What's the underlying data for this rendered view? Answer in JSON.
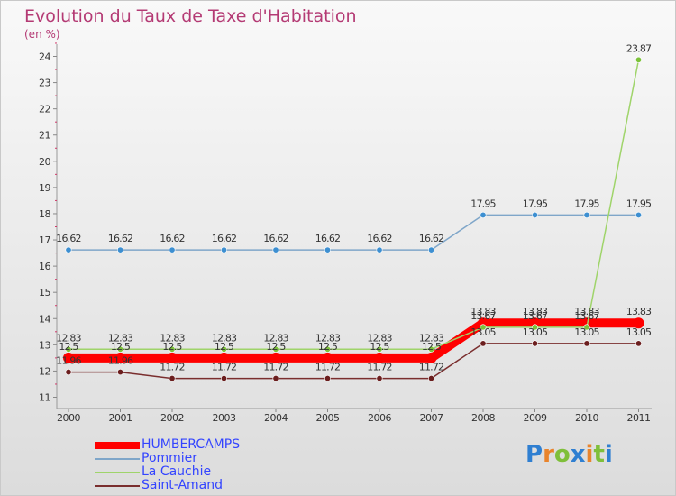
{
  "title": "Evolution du Taux de Taxe d'Habitation",
  "unit_label": "(en %)",
  "brand": {
    "text": "Proxiti",
    "letters": [
      {
        "ch": "P",
        "color": "#2f7fd1"
      },
      {
        "ch": "r",
        "color": "#e9842c"
      },
      {
        "ch": "o",
        "color": "#7fbf3a"
      },
      {
        "ch": "x",
        "color": "#2f7fd1"
      },
      {
        "ch": "i",
        "color": "#e9842c"
      },
      {
        "ch": "t",
        "color": "#7fbf3a"
      },
      {
        "ch": "i",
        "color": "#2f7fd1"
      }
    ]
  },
  "chart_data": {
    "type": "line",
    "title": "Evolution du Taux de Taxe d'Habitation",
    "ylabel": "(en %)",
    "xlabel": "",
    "categories": [
      "2000",
      "2001",
      "2002",
      "2003",
      "2004",
      "2005",
      "2006",
      "2007",
      "2008",
      "2009",
      "2010",
      "2011"
    ],
    "ylim": [
      11,
      24
    ],
    "yticks": [
      "11",
      "12",
      "13",
      "14",
      "15",
      "16",
      "17",
      "18",
      "19",
      "20",
      "21",
      "22",
      "23",
      "24"
    ],
    "grid": false,
    "legend_position": "bottom-left",
    "series": [
      {
        "name": "HUMBERCAMPS",
        "color": "#ff0000",
        "emphasis": true,
        "values": [
          12.5,
          12.5,
          12.5,
          12.5,
          12.5,
          12.5,
          12.5,
          12.5,
          13.83,
          13.83,
          13.83,
          13.83
        ],
        "labels": [
          "12.5",
          "12.5",
          "12.5",
          "12.5",
          "12.5",
          "12.5",
          "12.5",
          "12.5",
          "13.83",
          "13.83",
          "13.83",
          "13.83"
        ]
      },
      {
        "name": "Pommier",
        "color": "#7fa6c9",
        "marker": "#3d8fd1",
        "values": [
          16.62,
          16.62,
          16.62,
          16.62,
          16.62,
          16.62,
          16.62,
          16.62,
          17.95,
          17.95,
          17.95,
          17.95
        ],
        "labels": [
          "16.62",
          "16.62",
          "16.62",
          "16.62",
          "16.62",
          "16.62",
          "16.62",
          "16.62",
          "17.95",
          "17.95",
          "17.95",
          "17.95"
        ]
      },
      {
        "name": "La Cauchie",
        "color": "#9fd46a",
        "marker": "#7cc23a",
        "values": [
          12.83,
          12.83,
          12.83,
          12.83,
          12.83,
          12.83,
          12.83,
          12.83,
          13.67,
          13.67,
          13.67,
          23.87
        ],
        "labels": [
          "12.83",
          "12.83",
          "12.83",
          "12.83",
          "12.83",
          "12.83",
          "12.83",
          "12.83",
          "13.67",
          "13.67",
          "13.67",
          "23.87"
        ]
      },
      {
        "name": "Saint-Amand",
        "color": "#7a2e2e",
        "marker": "#6b1e1e",
        "values": [
          11.96,
          11.96,
          11.72,
          11.72,
          11.72,
          11.72,
          11.72,
          11.72,
          13.05,
          13.05,
          13.05,
          13.05
        ],
        "labels": [
          "11.96",
          "11.96",
          "11.72",
          "11.72",
          "11.72",
          "11.72",
          "11.72",
          "11.72",
          "13.05",
          "13.05",
          "13.05",
          "13.05"
        ]
      }
    ]
  }
}
